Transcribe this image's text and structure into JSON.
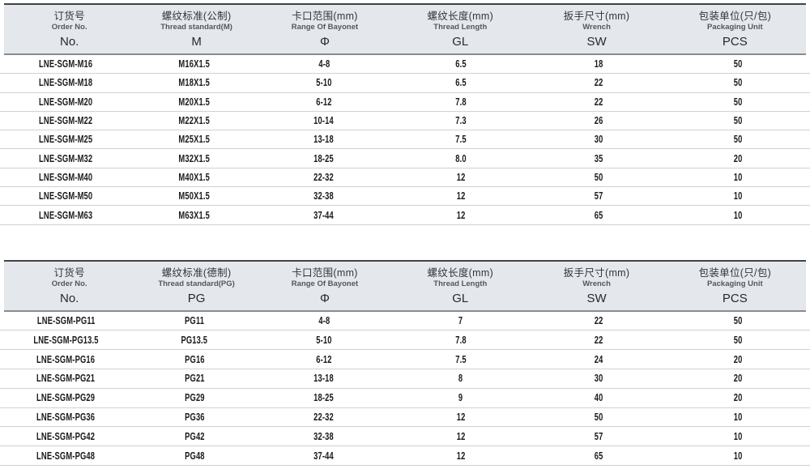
{
  "page": {
    "background": "#ffffff",
    "colors": {
      "header_bg": "#e4e7ec",
      "table_top_border": "#3f4347",
      "header_rule": "#888c90",
      "row_rule": "#cfd1d3",
      "text": "#191b1d"
    }
  },
  "tables": [
    {
      "name": "metric-thread-table",
      "columns": [
        {
          "zh": "订货号",
          "en": "Order No.",
          "symbol": "No."
        },
        {
          "zh": "螺纹标准(公制)",
          "en": "Thread standard(M)",
          "symbol": "M"
        },
        {
          "zh": "卡口范围(mm)",
          "en": "Range Of Bayonet",
          "symbol": "Φ"
        },
        {
          "zh": "螺纹长度(mm)",
          "en": "Thread Length",
          "symbol": "GL"
        },
        {
          "zh": "扳手尺寸(mm)",
          "en": "Wrench",
          "symbol": "SW"
        },
        {
          "zh": "包装单位(只/包)",
          "en": "Packaging Unit",
          "symbol": "PCS"
        }
      ],
      "rows": [
        [
          "LNE-SGM-M16",
          "M16X1.5",
          "4-8",
          "6.5",
          "18",
          "50"
        ],
        [
          "LNE-SGM-M18",
          "M18X1.5",
          "5-10",
          "6.5",
          "22",
          "50"
        ],
        [
          "LNE-SGM-M20",
          "M20X1.5",
          "6-12",
          "7.8",
          "22",
          "50"
        ],
        [
          "LNE-SGM-M22",
          "M22X1.5",
          "10-14",
          "7.3",
          "26",
          "50"
        ],
        [
          "LNE-SGM-M25",
          "M25X1.5",
          "13-18",
          "7.5",
          "30",
          "50"
        ],
        [
          "LNE-SGM-M32",
          "M32X1.5",
          "18-25",
          "8.0",
          "35",
          "20"
        ],
        [
          "LNE-SGM-M40",
          "M40X1.5",
          "22-32",
          "12",
          "50",
          "10"
        ],
        [
          "LNE-SGM-M50",
          "M50X1.5",
          "32-38",
          "12",
          "57",
          "10"
        ],
        [
          "LNE-SGM-M63",
          "M63X1.5",
          "37-44",
          "12",
          "65",
          "10"
        ]
      ]
    },
    {
      "name": "pg-thread-table",
      "columns": [
        {
          "zh": "订货号",
          "en": "Order No.",
          "symbol": "No."
        },
        {
          "zh": "螺纹标准(德制)",
          "en": "Thread standard(PG)",
          "symbol": "PG"
        },
        {
          "zh": "卡口范围(mm)",
          "en": "Range Of Bayonet",
          "symbol": "Φ"
        },
        {
          "zh": "螺纹长度(mm)",
          "en": "Thread Length",
          "symbol": "GL"
        },
        {
          "zh": "扳手尺寸(mm)",
          "en": "Wrench",
          "symbol": "SW"
        },
        {
          "zh": "包装单位(只/包)",
          "en": "Packaging Unit",
          "symbol": "PCS"
        }
      ],
      "rows": [
        [
          "LNE-SGM-PG11",
          "PG11",
          "4-8",
          "7",
          "22",
          "50"
        ],
        [
          "LNE-SGM-PG13.5",
          "PG13.5",
          "5-10",
          "7.8",
          "22",
          "50"
        ],
        [
          "LNE-SGM-PG16",
          "PG16",
          "6-12",
          "7.5",
          "24",
          "20"
        ],
        [
          "LNE-SGM-PG21",
          "PG21",
          "13-18",
          "8",
          "30",
          "20"
        ],
        [
          "LNE-SGM-PG29",
          "PG29",
          "18-25",
          "9",
          "40",
          "20"
        ],
        [
          "LNE-SGM-PG36",
          "PG36",
          "22-32",
          "12",
          "50",
          "10"
        ],
        [
          "LNE-SGM-PG42",
          "PG42",
          "32-38",
          "12",
          "57",
          "10"
        ],
        [
          "LNE-SGM-PG48",
          "PG48",
          "37-44",
          "12",
          "65",
          "10"
        ]
      ]
    }
  ]
}
